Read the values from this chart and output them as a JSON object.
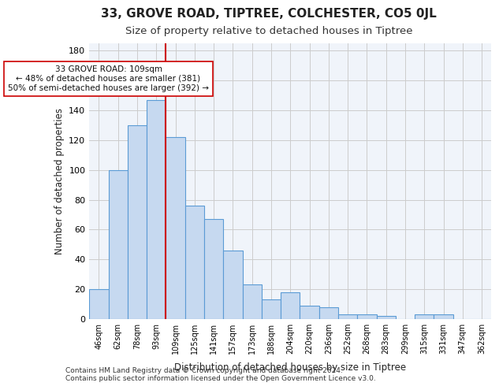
{
  "title": "33, GROVE ROAD, TIPTREE, COLCHESTER, CO5 0JL",
  "subtitle": "Size of property relative to detached houses in Tiptree",
  "xlabel": "Distribution of detached houses by size in Tiptree",
  "ylabel": "Number of detached properties",
  "categories": [
    "46sqm",
    "62sqm",
    "78sqm",
    "93sqm",
    "109sqm",
    "125sqm",
    "141sqm",
    "157sqm",
    "173sqm",
    "188sqm",
    "204sqm",
    "220sqm",
    "236sqm",
    "252sqm",
    "268sqm",
    "283sqm",
    "299sqm",
    "315sqm",
    "331sqm",
    "347sqm",
    "362sqm"
  ],
  "values": [
    20,
    100,
    130,
    147,
    122,
    76,
    67,
    46,
    23,
    13,
    18,
    9,
    8,
    3,
    3,
    2,
    0,
    3,
    3,
    0,
    0
  ],
  "bar_color": "#c6d9f0",
  "bar_edge_color": "#5b9bd5",
  "vline_x_index": 4,
  "vline_color": "#cc0000",
  "annotation_text": "33 GROVE ROAD: 109sqm\n← 48% of detached houses are smaller (381)\n50% of semi-detached houses are larger (392) →",
  "annotation_box_color": "#ffffff",
  "annotation_box_edge": "#cc0000",
  "ylim": [
    0,
    185
  ],
  "yticks": [
    0,
    20,
    40,
    60,
    80,
    100,
    120,
    140,
    160,
    180
  ],
  "grid_color": "#cccccc",
  "background_color": "#f0f4fa",
  "footer_line1": "Contains HM Land Registry data © Crown copyright and database right 2024.",
  "footer_line2": "Contains public sector information licensed under the Open Government Licence v3.0."
}
